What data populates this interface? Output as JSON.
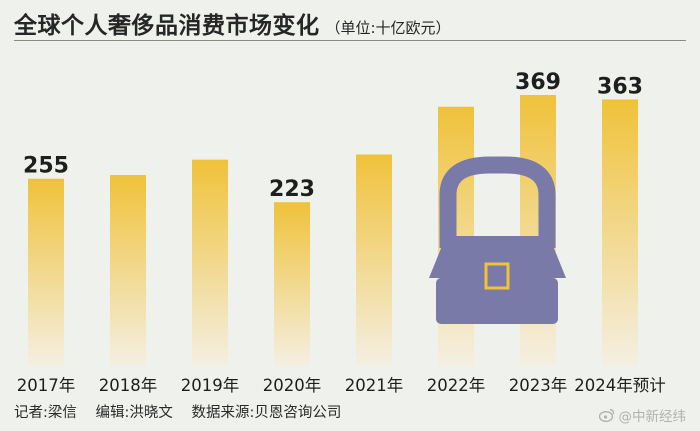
{
  "header": {
    "title": "全球个人奢侈品消费市场变化",
    "unit": "（单位:十亿欧元）"
  },
  "footer": {
    "reporter": "记者:梁信",
    "editor": "编辑:洪晓文",
    "source": "数据来源:贝恩咨询公司"
  },
  "watermark": {
    "text": "@中新经纬"
  },
  "colors": {
    "bar_top": "#f0c23a",
    "bar_bottom": "#f4efe2",
    "bag": "#7a7aa8",
    "bag_clasp": "#f0c23a",
    "background": "#eff1ec"
  },
  "chart_data": {
    "type": "bar",
    "title": "全球个人奢侈品消费市场变化",
    "ylabel": "十亿欧元",
    "xlabel": "",
    "categories": [
      "2017年",
      "2018年",
      "2019年",
      "2020年",
      "2021年",
      "2022年",
      "2023年",
      "2024年预计"
    ],
    "values": [
      255,
      260,
      281,
      223,
      288,
      353,
      369,
      363
    ],
    "labeled": [
      true,
      false,
      false,
      true,
      false,
      false,
      true,
      true
    ],
    "ylim": [
      0,
      400
    ]
  }
}
